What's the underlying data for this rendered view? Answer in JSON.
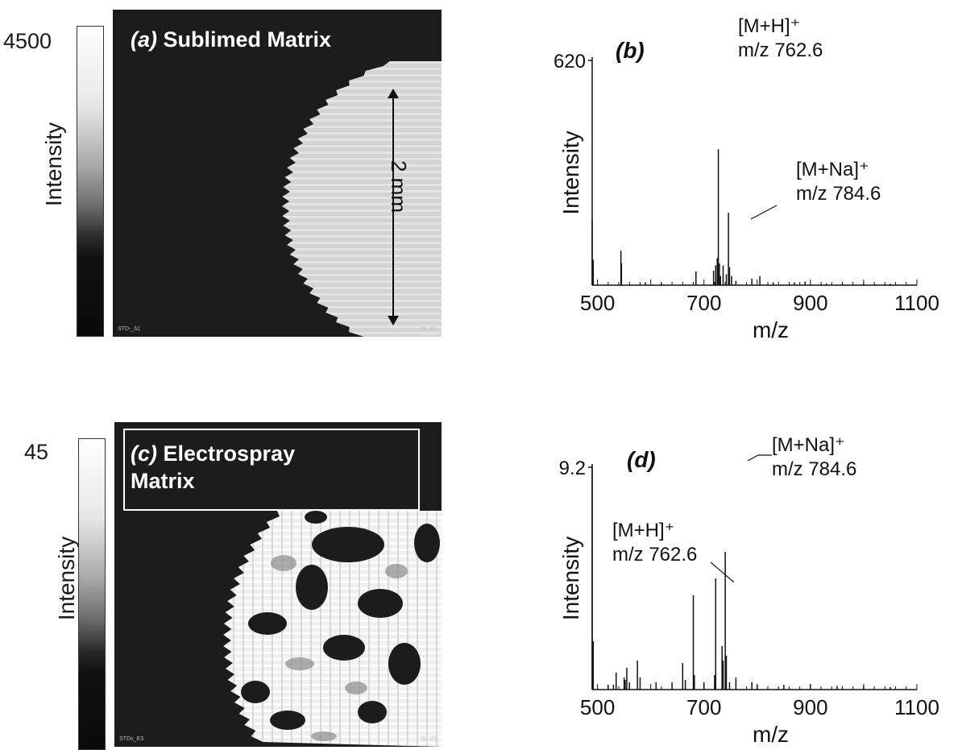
{
  "panel_a": {
    "label": "(a)",
    "title": "Sublimed Matrix",
    "scale_max": "4500",
    "scale_label": "Intensity",
    "dimension": "2 mm",
    "footer_left": "STD-_61",
    "footer_right": "SL 1/1"
  },
  "panel_c": {
    "label": "(c)",
    "title_line1": "Electrospray",
    "title_line2": "Matrix",
    "scale_max": "45",
    "scale_label": "Intensity",
    "footer_left": "STDs_ES",
    "footer_right": "SL 1/1"
  },
  "chart_data": [
    {
      "type": "line",
      "panel_label": "(b)",
      "ylabel": "Intensity",
      "xlabel": "m/z",
      "y_tick_label": "620",
      "xlim": [
        490,
        1100
      ],
      "ylim": [
        0,
        620
      ],
      "xticks": [
        500,
        700,
        900,
        1100
      ],
      "annotations": [
        {
          "line1": "[M+H]⁺",
          "line2": "m/z 762.6"
        },
        {
          "line1": "[M+Na]⁺",
          "line2": "m/z 784.6"
        }
      ],
      "peaks": [
        [
          490,
          180
        ],
        [
          492,
          70
        ],
        [
          544,
          95
        ],
        [
          545,
          60
        ],
        [
          590,
          8
        ],
        [
          620,
          6
        ],
        [
          685,
          38
        ],
        [
          718,
          40
        ],
        [
          722,
          55
        ],
        [
          725,
          75
        ],
        [
          727,
          375
        ],
        [
          729,
          60
        ],
        [
          731,
          25
        ],
        [
          736,
          55
        ],
        [
          742,
          30
        ],
        [
          746,
          200
        ],
        [
          748,
          50
        ],
        [
          752,
          25
        ],
        [
          760,
          12
        ],
        [
          790,
          18
        ],
        [
          805,
          25
        ],
        [
          830,
          8
        ],
        [
          870,
          8
        ],
        [
          890,
          10
        ],
        [
          930,
          5
        ],
        [
          960,
          5
        ],
        [
          1000,
          5
        ],
        [
          1050,
          4
        ]
      ]
    },
    {
      "type": "line",
      "panel_label": "(d)",
      "ylabel": "Intensity",
      "xlabel": "m/z",
      "y_tick_label": "9.2",
      "xlim": [
        490,
        1100
      ],
      "ylim": [
        0,
        9.2
      ],
      "xticks": [
        500,
        700,
        900,
        1100
      ],
      "annotations": [
        {
          "line1": "[M+H]⁺",
          "line2": "m/z 762.6"
        },
        {
          "line1": "[M+Na]⁺",
          "line2": "m/z 784.6"
        }
      ],
      "peaks": [
        [
          490,
          9.2
        ],
        [
          492,
          2.0
        ],
        [
          520,
          0.2
        ],
        [
          530,
          0.2
        ],
        [
          535,
          0.7
        ],
        [
          550,
          0.5
        ],
        [
          552,
          0.4
        ],
        [
          555,
          0.9
        ],
        [
          560,
          0.3
        ],
        [
          575,
          1.2
        ],
        [
          580,
          0.5
        ],
        [
          610,
          0.3
        ],
        [
          640,
          0.3
        ],
        [
          660,
          1.1
        ],
        [
          665,
          0.4
        ],
        [
          680,
          3.9
        ],
        [
          682,
          0.6
        ],
        [
          700,
          0.3
        ],
        [
          720,
          0.6
        ],
        [
          722,
          4.6
        ],
        [
          734,
          1.8
        ],
        [
          736,
          1.2
        ],
        [
          740,
          5.7
        ],
        [
          742,
          1.4
        ],
        [
          748,
          0.3
        ],
        [
          760,
          0.5
        ],
        [
          790,
          0.3
        ],
        [
          800,
          0.2
        ],
        [
          850,
          0.2
        ],
        [
          900,
          0.2
        ],
        [
          950,
          0.15
        ],
        [
          1000,
          0.15
        ],
        [
          1050,
          0.1
        ]
      ]
    }
  ]
}
